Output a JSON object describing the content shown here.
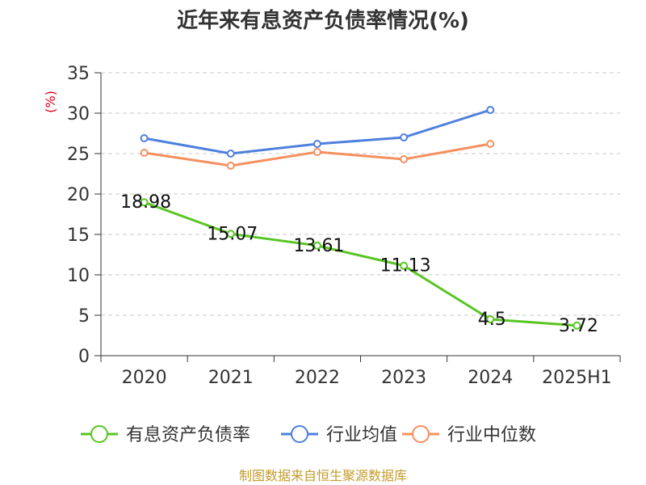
{
  "chart_data": {
    "type": "line",
    "title": "近年来有息资产负债率情况(%)",
    "unit": "(%)",
    "categories": [
      "2020",
      "2021",
      "2022",
      "2023",
      "2024",
      "2025H1"
    ],
    "y_ticks": [
      "0",
      "5",
      "10",
      "15",
      "20",
      "25",
      "30",
      "35"
    ],
    "ylim": [
      0,
      35
    ],
    "grid": true,
    "legend_position": "bottom",
    "series": [
      {
        "name": "有息资产负债率",
        "color": "#5ac524",
        "values": [
          18.98,
          15.07,
          13.61,
          11.13,
          4.5,
          3.72
        ],
        "labels": [
          "18.98",
          "15.07",
          "13.61",
          "11.13",
          "4.5",
          "3.72"
        ]
      },
      {
        "name": "行业均值",
        "color": "#4e80dd",
        "values": [
          26.9,
          25.0,
          26.2,
          27.0,
          30.4,
          null
        ]
      },
      {
        "name": "行业中位数",
        "color": "#f5905e",
        "values": [
          25.1,
          23.5,
          25.2,
          24.3,
          26.2,
          null
        ]
      }
    ],
    "source": "制图数据来自恒生聚源数据库"
  }
}
